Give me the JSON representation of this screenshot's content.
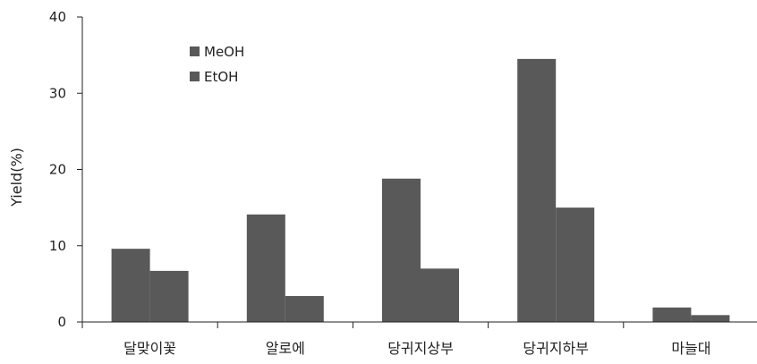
{
  "chart_data": {
    "type": "bar",
    "title": "",
    "xlabel": "",
    "ylabel": "Yield(%)",
    "ylim": [
      0,
      40
    ],
    "yticks": [
      0,
      10,
      20,
      30,
      40
    ],
    "grid": false,
    "legend_position": "top-left",
    "categories": [
      "달맞이꽃",
      "알로에",
      "당귀지상부",
      "당귀지하부",
      "마늘대"
    ],
    "series": [
      {
        "name": "MeOH",
        "values": [
          9.6,
          14.1,
          18.8,
          34.5,
          1.9
        ],
        "color": "#595959"
      },
      {
        "name": "EtOH",
        "values": [
          6.7,
          3.4,
          7.0,
          15.0,
          0.9
        ],
        "color": "#595959"
      }
    ],
    "colors": {
      "axis": "#222222",
      "bar": "#595959"
    }
  }
}
